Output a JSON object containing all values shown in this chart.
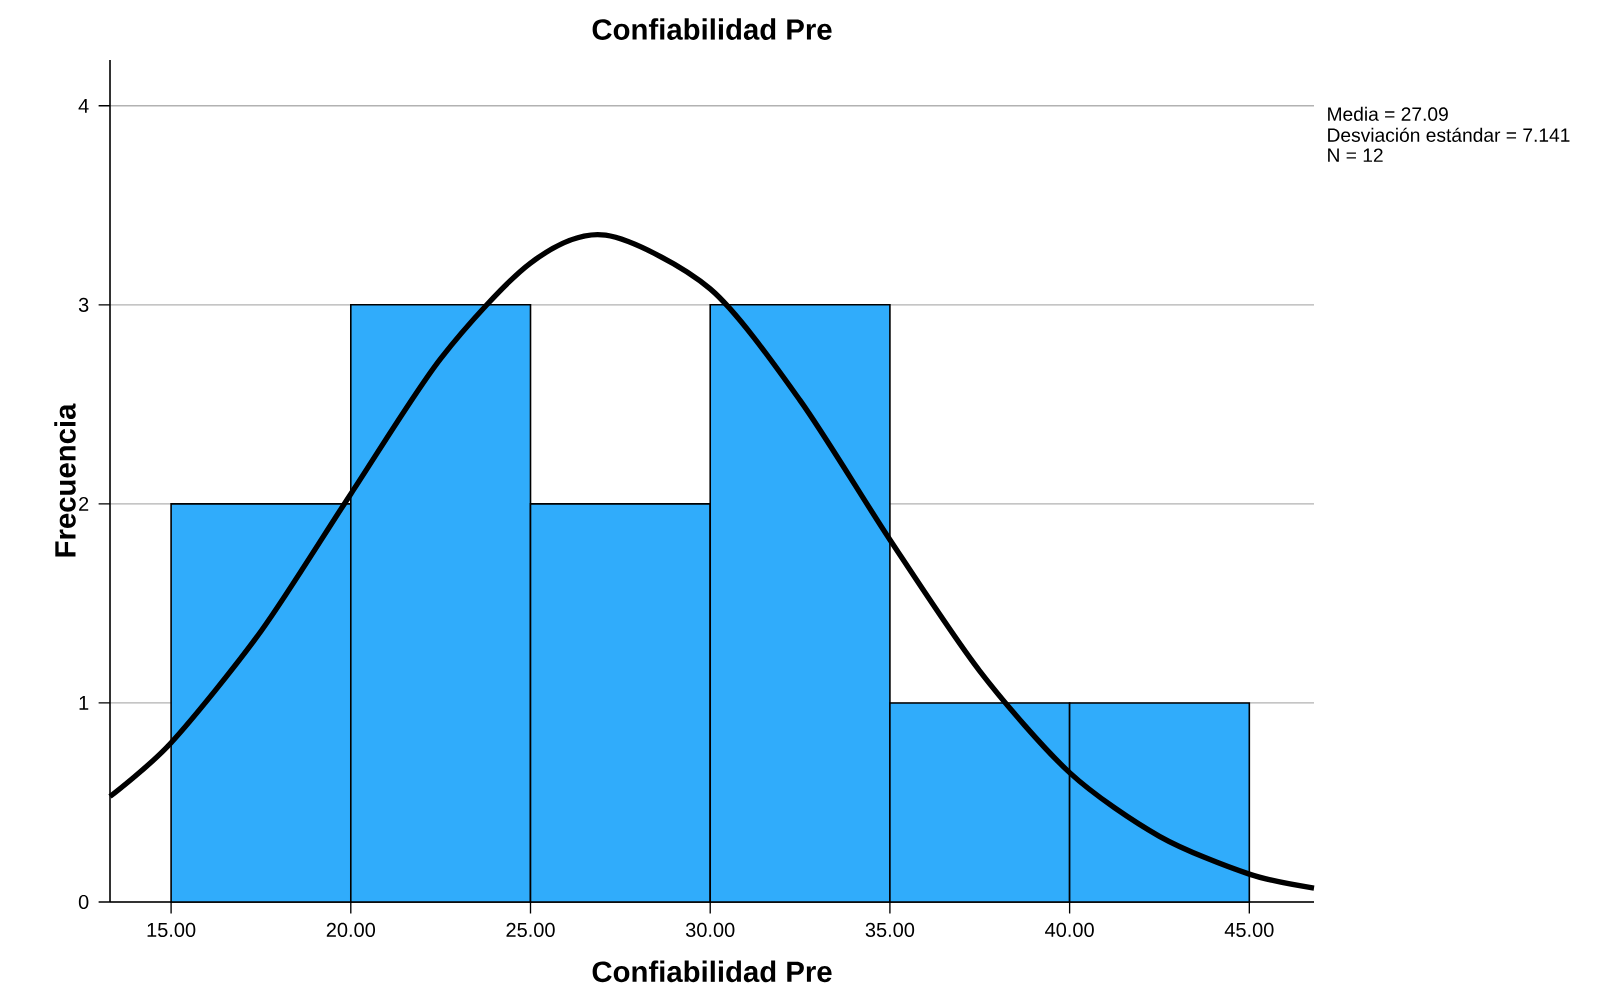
{
  "chart_data": {
    "type": "histogram",
    "title": "Confiabilidad Pre",
    "xlabel": "Confiabilidad Pre",
    "ylabel": "Frecuencia",
    "bins": [
      15,
      20,
      25,
      30,
      35,
      40,
      45
    ],
    "values": [
      2,
      3,
      2,
      3,
      1,
      1
    ],
    "color": "#30acfb",
    "series": [
      {
        "type": "line",
        "color": "#000000",
        "x": [
          13.3,
          15,
          17.5,
          20,
          22.5,
          25,
          27.09,
          30,
          32.5,
          35,
          37.5,
          40,
          42.5,
          45,
          46.8
        ],
        "values": [
          0.53,
          0.8,
          1.36,
          2.05,
          2.73,
          3.21,
          3.35,
          3.08,
          2.52,
          1.82,
          1.16,
          0.65,
          0.33,
          0.14,
          0.07
        ]
      }
    ],
    "xlim": [
      13.3,
      46.8
    ],
    "ylim": [
      0,
      4.23
    ],
    "xticks": [
      {
        "value": 15,
        "label": "15.00"
      },
      {
        "value": 20,
        "label": "20.00"
      },
      {
        "value": 25,
        "label": "25.00"
      },
      {
        "value": 30,
        "label": "30.00"
      },
      {
        "value": 35,
        "label": "35.00"
      },
      {
        "value": 40,
        "label": "40.00"
      },
      {
        "value": 45,
        "label": "45.00"
      }
    ],
    "yticks": [
      0,
      1,
      2,
      3,
      4
    ],
    "grid": "y",
    "annotations": [
      "Media = 27.09",
      "Desviación estándar = 7.141",
      "N = 12"
    ]
  }
}
